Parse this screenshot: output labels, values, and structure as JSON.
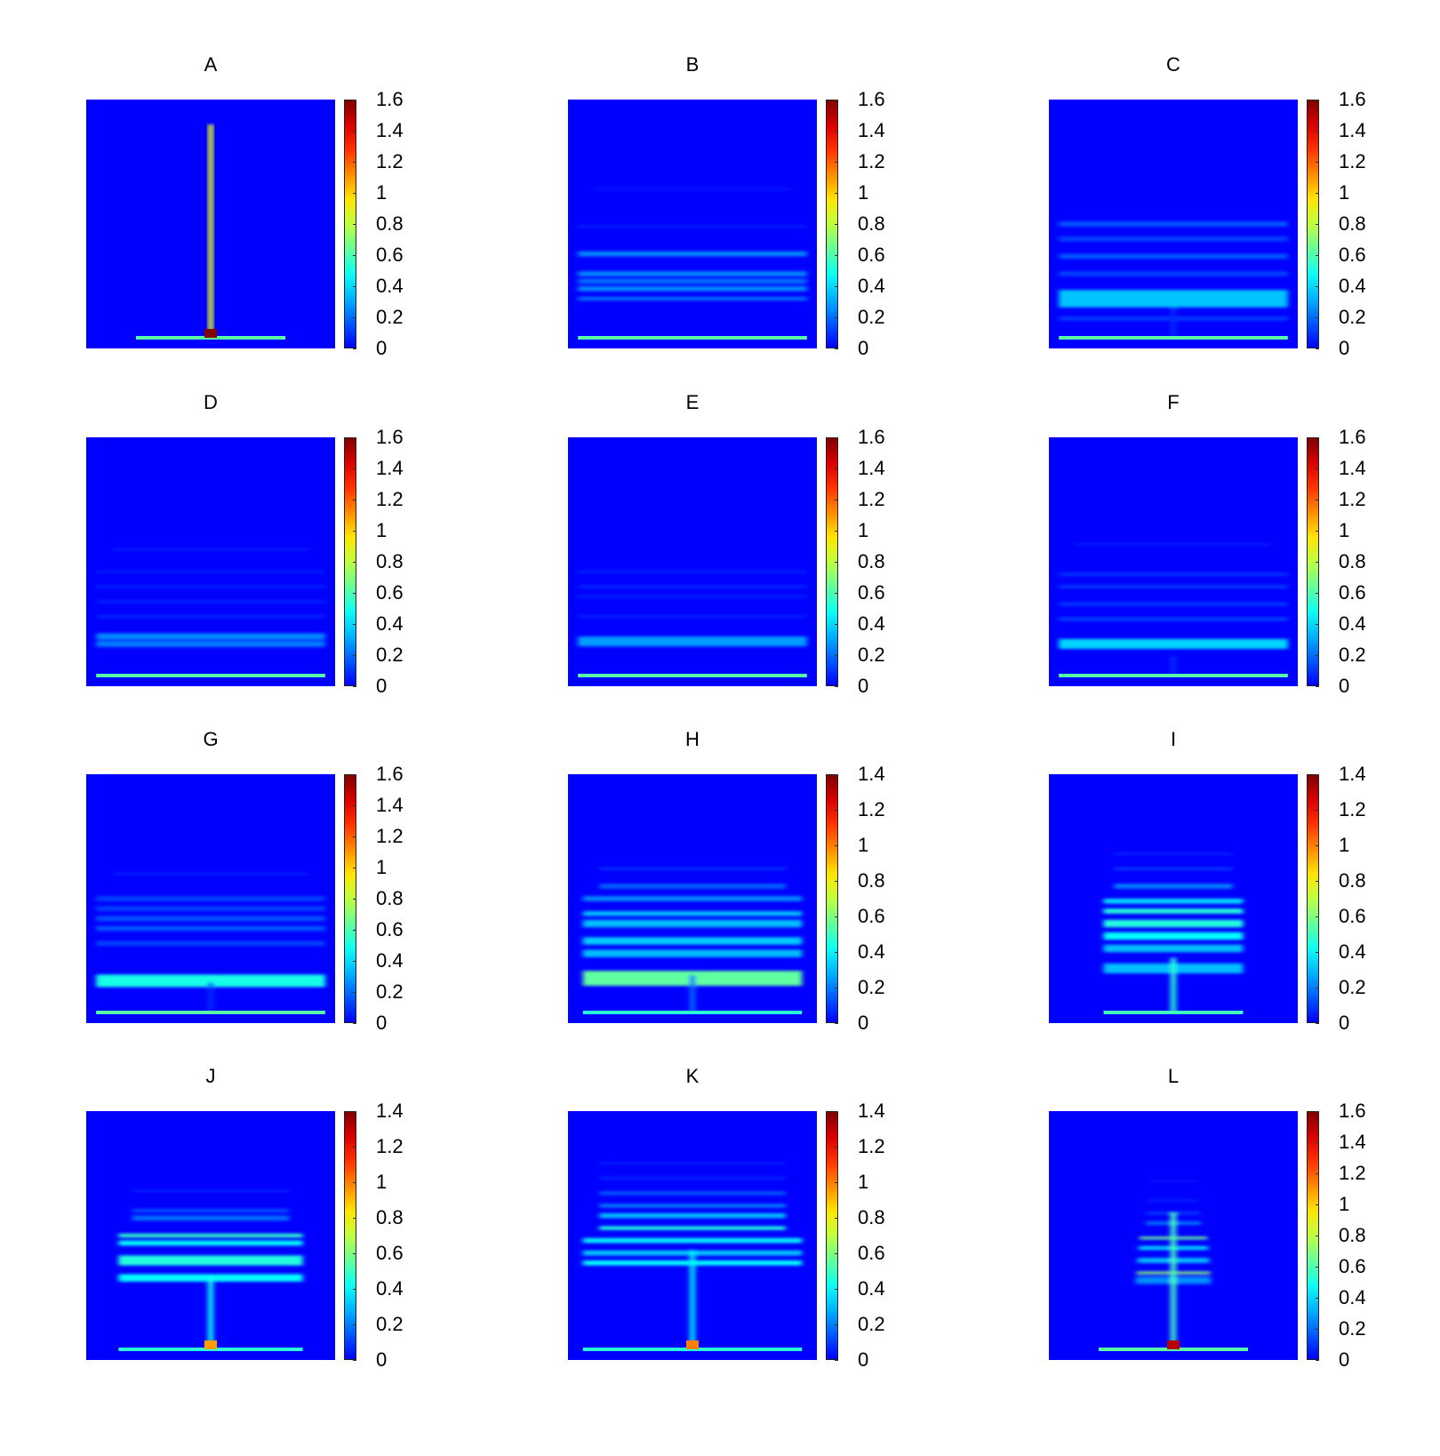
{
  "chart_data": [
    {
      "type": "heatmap",
      "title": "A",
      "colorbar": {
        "min": 0,
        "max": 1.6,
        "ticks": [
          "1.6",
          "1.4",
          "1.2",
          "1",
          "0.8",
          "0.6",
          "0.4",
          "0.2",
          "0"
        ]
      },
      "colormap": "jet",
      "features": {
        "base_line": 0.7,
        "base_halfwidth": 0.3,
        "stem": 0.9,
        "stem_top": 0.93,
        "hotspot": 1.6,
        "bands": []
      }
    },
    {
      "type": "heatmap",
      "title": "B",
      "colorbar": {
        "min": 0,
        "max": 1.6,
        "ticks": [
          "1.6",
          "1.4",
          "1.2",
          "1",
          "0.8",
          "0.6",
          "0.4",
          "0.2",
          "0"
        ]
      },
      "colormap": "jet",
      "features": {
        "base_line": 0.7,
        "base_halfwidth": 0.46,
        "stem": 0,
        "stem_top": 0,
        "hotspot": 0,
        "bands": [
          [
            0.38,
            0.02,
            0.25
          ],
          [
            0.3,
            0.02,
            0.25
          ],
          [
            0.27,
            0.02,
            0.2
          ],
          [
            0.24,
            0.02,
            0.25
          ],
          [
            0.2,
            0.015,
            0.2
          ],
          [
            0.49,
            0.01,
            0.06
          ],
          [
            0.64,
            0.01,
            0.04
          ]
        ]
      }
    },
    {
      "type": "heatmap",
      "title": "C",
      "colorbar": {
        "min": 0,
        "max": 1.6,
        "ticks": [
          "1.6",
          "1.4",
          "1.2",
          "1",
          "0.8",
          "0.6",
          "0.4",
          "0.2",
          "0"
        ]
      },
      "colormap": "jet",
      "features": {
        "base_line": 0.7,
        "base_halfwidth": 0.46,
        "stem": 0.08,
        "stem_top": 0.12,
        "hotspot": 0,
        "bands": [
          [
            0.2,
            0.07,
            0.35
          ],
          [
            0.3,
            0.02,
            0.12
          ],
          [
            0.37,
            0.02,
            0.16
          ],
          [
            0.44,
            0.02,
            0.12
          ],
          [
            0.5,
            0.02,
            0.16
          ],
          [
            0.12,
            0.015,
            0.12
          ]
        ]
      }
    },
    {
      "type": "heatmap",
      "title": "D",
      "colorbar": {
        "min": 0,
        "max": 1.6,
        "ticks": [
          "1.6",
          "1.4",
          "1.2",
          "1",
          "0.8",
          "0.6",
          "0.4",
          "0.2",
          "0"
        ]
      },
      "colormap": "jet",
      "features": {
        "base_line": 0.7,
        "base_halfwidth": 0.46,
        "stem": 0,
        "stem_top": 0,
        "hotspot": 0,
        "bands": [
          [
            0.2,
            0.025,
            0.25
          ],
          [
            0.17,
            0.025,
            0.22
          ],
          [
            0.28,
            0.015,
            0.06
          ],
          [
            0.34,
            0.015,
            0.05
          ],
          [
            0.4,
            0.015,
            0.05
          ],
          [
            0.46,
            0.015,
            0.04
          ],
          [
            0.55,
            0.015,
            0.04
          ]
        ]
      }
    },
    {
      "type": "heatmap",
      "title": "E",
      "colorbar": {
        "min": 0,
        "max": 1.6,
        "ticks": [
          "1.6",
          "1.4",
          "1.2",
          "1",
          "0.8",
          "0.6",
          "0.4",
          "0.2",
          "0"
        ]
      },
      "colormap": "jet",
      "features": {
        "base_line": 0.7,
        "base_halfwidth": 0.46,
        "stem": 0,
        "stem_top": 0,
        "hotspot": 0,
        "bands": [
          [
            0.18,
            0.04,
            0.28
          ],
          [
            0.28,
            0.015,
            0.05
          ],
          [
            0.36,
            0.015,
            0.05
          ],
          [
            0.4,
            0.015,
            0.06
          ],
          [
            0.46,
            0.015,
            0.05
          ]
        ]
      }
    },
    {
      "type": "heatmap",
      "title": "F",
      "colorbar": {
        "min": 0,
        "max": 1.6,
        "ticks": [
          "1.6",
          "1.4",
          "1.2",
          "1",
          "0.8",
          "0.6",
          "0.4",
          "0.2",
          "0"
        ]
      },
      "colormap": "jet",
      "features": {
        "base_line": 0.7,
        "base_halfwidth": 0.46,
        "stem": 0.08,
        "stem_top": 0.08,
        "hotspot": 0,
        "bands": [
          [
            0.17,
            0.04,
            0.38
          ],
          [
            0.27,
            0.015,
            0.12
          ],
          [
            0.33,
            0.015,
            0.1
          ],
          [
            0.4,
            0.015,
            0.1
          ],
          [
            0.45,
            0.015,
            0.08
          ],
          [
            0.57,
            0.01,
            0.05
          ]
        ]
      }
    },
    {
      "type": "heatmap",
      "title": "G",
      "colorbar": {
        "min": 0,
        "max": 1.6,
        "ticks": [
          "1.6",
          "1.4",
          "1.2",
          "1",
          "0.8",
          "0.6",
          "0.4",
          "0.2",
          "0"
        ]
      },
      "colormap": "jet",
      "features": {
        "base_line": 0.7,
        "base_halfwidth": 0.46,
        "stem": 0.08,
        "stem_top": 0.12,
        "hotspot": 0,
        "bands": [
          [
            0.17,
            0.05,
            0.5
          ],
          [
            0.32,
            0.02,
            0.12
          ],
          [
            0.38,
            0.02,
            0.16
          ],
          [
            0.42,
            0.02,
            0.15
          ],
          [
            0.46,
            0.02,
            0.12
          ],
          [
            0.5,
            0.02,
            0.12
          ],
          [
            0.6,
            0.01,
            0.06
          ]
        ]
      }
    },
    {
      "type": "heatmap",
      "title": "H",
      "colorbar": {
        "min": 0,
        "max": 1.4,
        "ticks": [
          "1.4",
          "1.2",
          "1",
          "0.8",
          "0.6",
          "0.4",
          "0.2",
          "0"
        ]
      },
      "colormap": "jet",
      "features": {
        "base_line": 0.6,
        "base_halfwidth": 0.44,
        "stem": 0.2,
        "stem_top": 0.15,
        "hotspot": 0,
        "bands": [
          [
            0.18,
            0.06,
            0.55
          ],
          [
            0.28,
            0.03,
            0.3
          ],
          [
            0.33,
            0.03,
            0.32
          ],
          [
            0.4,
            0.03,
            0.3
          ],
          [
            0.44,
            0.02,
            0.3
          ],
          [
            0.5,
            0.02,
            0.22
          ],
          [
            0.55,
            0.02,
            0.15
          ],
          [
            0.62,
            0.01,
            0.08
          ]
        ]
      }
    },
    {
      "type": "heatmap",
      "title": "I",
      "colorbar": {
        "min": 0,
        "max": 1.4,
        "ticks": [
          "1.4",
          "1.2",
          "1",
          "0.8",
          "0.6",
          "0.4",
          "0.2",
          "0"
        ]
      },
      "colormap": "jet",
      "features": {
        "base_line": 0.65,
        "base_halfwidth": 0.28,
        "stem": 0.55,
        "stem_top": 0.22,
        "hotspot": 0,
        "bands": [
          [
            0.22,
            0.04,
            0.3
          ],
          [
            0.3,
            0.03,
            0.3
          ],
          [
            0.35,
            0.03,
            0.4
          ],
          [
            0.4,
            0.03,
            0.45
          ],
          [
            0.45,
            0.02,
            0.45
          ],
          [
            0.49,
            0.02,
            0.35
          ],
          [
            0.55,
            0.02,
            0.2
          ],
          [
            0.62,
            0.01,
            0.1
          ],
          [
            0.68,
            0.01,
            0.05
          ]
        ]
      }
    },
    {
      "type": "heatmap",
      "title": "J",
      "colorbar": {
        "min": 0,
        "max": 1.4,
        "ticks": [
          "1.4",
          "1.2",
          "1",
          "0.8",
          "0.6",
          "0.4",
          "0.2",
          "0"
        ]
      },
      "colormap": "jet",
      "features": {
        "base_line": 0.6,
        "base_halfwidth": 0.37,
        "stem": 0.5,
        "stem_top": 0.3,
        "hotspot": 0.95,
        "bands": [
          [
            0.33,
            0.03,
            0.4
          ],
          [
            0.4,
            0.04,
            0.45
          ],
          [
            0.47,
            0.02,
            0.4
          ],
          [
            0.5,
            0.015,
            0.48
          ],
          [
            0.57,
            0.02,
            0.18
          ],
          [
            0.6,
            0.015,
            0.12
          ],
          [
            0.68,
            0.01,
            0.05
          ]
        ]
      }
    },
    {
      "type": "heatmap",
      "title": "K",
      "colorbar": {
        "min": 0,
        "max": 1.4,
        "ticks": [
          "1.4",
          "1.2",
          "1",
          "0.8",
          "0.6",
          "0.4",
          "0.2",
          "0"
        ]
      },
      "colormap": "jet",
      "features": {
        "base_line": 0.6,
        "base_halfwidth": 0.44,
        "stem": 0.45,
        "stem_top": 0.4,
        "hotspot": 1.0,
        "bands": [
          [
            0.39,
            0.02,
            0.4
          ],
          [
            0.43,
            0.02,
            0.32
          ],
          [
            0.48,
            0.02,
            0.38
          ],
          [
            0.53,
            0.015,
            0.45
          ],
          [
            0.58,
            0.02,
            0.3
          ],
          [
            0.62,
            0.015,
            0.2
          ],
          [
            0.67,
            0.015,
            0.14
          ],
          [
            0.73,
            0.01,
            0.06
          ],
          [
            0.79,
            0.01,
            0.04
          ]
        ]
      }
    },
    {
      "type": "heatmap",
      "title": "L",
      "colorbar": {
        "min": 0,
        "max": 1.6,
        "ticks": [
          "1.6",
          "1.4",
          "1.2",
          "1",
          "0.8",
          "0.6",
          "0.4",
          "0.2",
          "0"
        ]
      },
      "colormap": "jet",
      "features": {
        "base_line": 0.7,
        "base_halfwidth": 0.3,
        "stem": 0.6,
        "stem_top": 0.55,
        "hotspot": 1.5,
        "bands": [
          [
            0.32,
            0.03,
            0.25
          ],
          [
            0.35,
            0.01,
            0.7
          ],
          [
            0.4,
            0.02,
            0.35
          ],
          [
            0.45,
            0.015,
            0.4
          ],
          [
            0.49,
            0.01,
            0.65
          ],
          [
            0.55,
            0.015,
            0.2
          ],
          [
            0.59,
            0.01,
            0.12
          ],
          [
            0.64,
            0.01,
            0.06
          ],
          [
            0.72,
            0.01,
            0.03
          ]
        ]
      }
    }
  ]
}
